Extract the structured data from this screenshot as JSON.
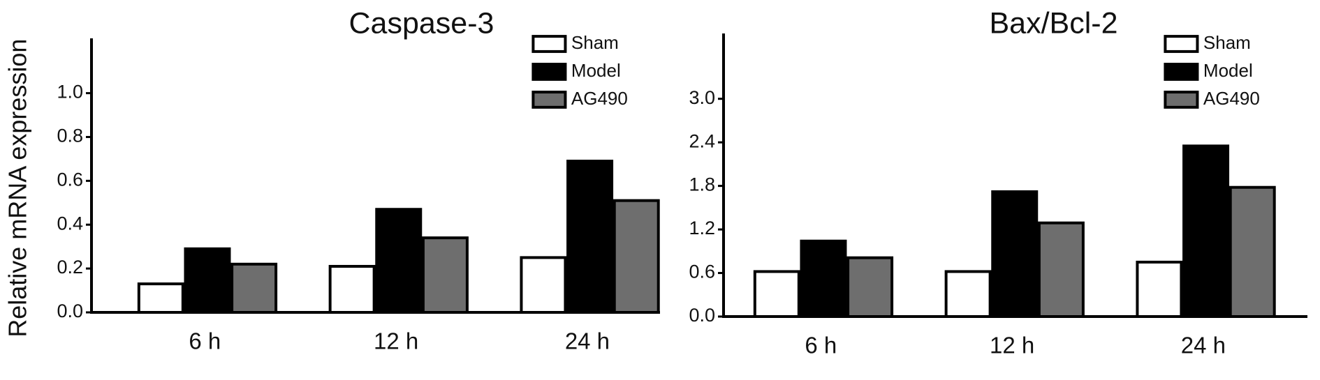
{
  "chart_data": [
    {
      "type": "bar",
      "title": "Caspase-3",
      "y_label": "Relative mRNA expression",
      "categories": [
        "6 h",
        "12 h",
        "24 h"
      ],
      "series": [
        {
          "name": "Sham",
          "color": "#ffffff",
          "values": [
            0.13,
            0.21,
            0.25
          ]
        },
        {
          "name": "Model",
          "color": "#000000",
          "values": [
            0.29,
            0.47,
            0.69
          ]
        },
        {
          "name": "AG490",
          "color": "#6e6e6e",
          "values": [
            0.22,
            0.34,
            0.51
          ]
        }
      ],
      "ylim": [
        0,
        1.25
      ],
      "yticks": [
        {
          "value": 0,
          "label": "0.0"
        },
        0.2,
        0.4,
        0.6,
        0.8,
        {
          "value": 1,
          "label": "1.0"
        }
      ],
      "legend": "upper right"
    },
    {
      "type": "bar",
      "title": "Bax/Bcl-2",
      "categories": [
        "6 h",
        "12 h",
        "24 h"
      ],
      "series": [
        {
          "name": "Sham",
          "color": "#ffffff",
          "values": [
            0.62,
            0.62,
            0.75
          ]
        },
        {
          "name": "Model",
          "color": "#000000",
          "values": [
            1.04,
            1.72,
            2.35
          ]
        },
        {
          "name": "AG490",
          "color": "#6e6e6e",
          "values": [
            0.81,
            1.29,
            1.78
          ]
        }
      ],
      "ylim": [
        0,
        3.9
      ],
      "yticks": [
        {
          "value": 0,
          "label": "0.0"
        },
        0.6,
        1.2,
        1.8,
        2.4,
        {
          "value": 3,
          "label": "3.0"
        }
      ],
      "legend": "upper right"
    }
  ]
}
